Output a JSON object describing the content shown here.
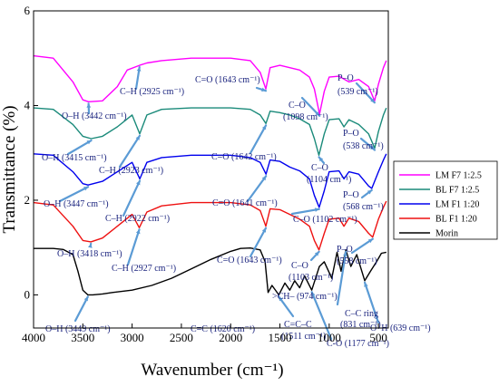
{
  "chart_data": {
    "type": "line",
    "title": "",
    "xlabel": "Wavenumber (cm⁻¹)",
    "ylabel": "Transmittance (%)",
    "xlim": [
      4000,
      400
    ],
    "ylim": [
      -0.7,
      6
    ],
    "x_ticks": [
      "4000",
      "3500",
      "3000",
      "2500",
      "2000",
      "1500",
      "1000",
      "500"
    ],
    "y_ticks": [
      "0",
      "2",
      "4",
      "6"
    ],
    "grid": false,
    "legend_position": "right",
    "legend": [
      {
        "label": "LM F7 1:2.5",
        "color": "#ff00ff"
      },
      {
        "label": "BL F7 1:2.5",
        "color": "#1a8a7a"
      },
      {
        "label": "LM F1 1:20",
        "color": "#0000ee"
      },
      {
        "label": "BL F1 1:20",
        "color": "#ee1111"
      },
      {
        "label": "Morin",
        "color": "#000000"
      }
    ],
    "series": [
      {
        "name": "LM F7 1:2.5",
        "color": "#ff00ff",
        "x": [
          4000,
          3800,
          3600,
          3500,
          3442,
          3300,
          3150,
          3050,
          2925,
          2850,
          2700,
          2400,
          2000,
          1800,
          1700,
          1643,
          1600,
          1500,
          1400,
          1300,
          1200,
          1150,
          1098,
          1050,
          1000,
          900,
          800,
          700,
          600,
          539,
          500,
          450,
          420
        ],
        "y": [
          5.05,
          5.0,
          4.5,
          4.12,
          4.08,
          4.1,
          4.4,
          4.75,
          4.85,
          4.9,
          4.95,
          5.0,
          5.0,
          4.95,
          4.7,
          4.35,
          4.8,
          4.85,
          4.8,
          4.75,
          4.6,
          4.35,
          3.82,
          4.3,
          4.6,
          4.62,
          4.5,
          4.55,
          4.4,
          4.1,
          4.45,
          4.8,
          4.95
        ]
      },
      {
        "name": "BL F7 1:2.5",
        "color": "#1a8a7a",
        "x": [
          4000,
          3800,
          3600,
          3500,
          3415,
          3300,
          3150,
          3000,
          2923,
          2850,
          2700,
          2400,
          2000,
          1800,
          1700,
          1642,
          1600,
          1500,
          1400,
          1300,
          1200,
          1150,
          1104,
          1050,
          1000,
          900,
          850,
          800,
          700,
          600,
          538,
          500,
          450,
          420
        ],
        "y": [
          3.95,
          3.92,
          3.6,
          3.35,
          3.3,
          3.35,
          3.55,
          3.8,
          3.4,
          3.8,
          3.92,
          3.95,
          3.95,
          3.92,
          3.8,
          3.62,
          3.88,
          3.85,
          3.8,
          3.72,
          3.6,
          3.3,
          2.95,
          3.4,
          3.7,
          3.72,
          3.55,
          3.7,
          3.6,
          3.4,
          3.1,
          3.45,
          3.8,
          3.95
        ]
      },
      {
        "name": "LM F1 1:20",
        "color": "#0000ee",
        "x": [
          4000,
          3800,
          3600,
          3500,
          3447,
          3300,
          3150,
          3000,
          2922,
          2850,
          2700,
          2400,
          2000,
          1800,
          1700,
          1641,
          1600,
          1500,
          1400,
          1300,
          1200,
          1150,
          1102,
          1050,
          1000,
          900,
          850,
          800,
          700,
          600,
          568,
          500,
          450,
          420
        ],
        "y": [
          2.98,
          2.95,
          2.6,
          2.35,
          2.32,
          2.4,
          2.6,
          2.8,
          2.45,
          2.8,
          2.9,
          2.95,
          2.95,
          2.9,
          2.8,
          2.55,
          2.85,
          2.82,
          2.7,
          2.62,
          2.45,
          2.1,
          1.85,
          2.2,
          2.6,
          2.62,
          2.45,
          2.6,
          2.55,
          2.3,
          2.25,
          2.6,
          2.85,
          2.98
        ]
      },
      {
        "name": "BL F1 1:20",
        "color": "#ee1111",
        "x": [
          4000,
          3800,
          3600,
          3500,
          3418,
          3300,
          3150,
          3000,
          2927,
          2850,
          2700,
          2400,
          2000,
          1800,
          1700,
          1643,
          1600,
          1500,
          1400,
          1300,
          1200,
          1150,
          1103,
          1050,
          1000,
          900,
          850,
          800,
          700,
          600,
          558,
          500,
          450,
          420
        ],
        "y": [
          1.95,
          1.9,
          1.45,
          1.15,
          1.12,
          1.2,
          1.45,
          1.7,
          1.42,
          1.75,
          1.88,
          1.95,
          1.95,
          1.9,
          1.78,
          1.45,
          1.82,
          1.8,
          1.7,
          1.6,
          1.45,
          1.15,
          0.95,
          1.3,
          1.6,
          1.62,
          1.45,
          1.62,
          1.55,
          1.3,
          1.22,
          1.6,
          1.85,
          1.98
        ]
      },
      {
        "name": "Morin",
        "color": "#000000",
        "x": [
          4000,
          3800,
          3700,
          3600,
          3550,
          3500,
          3449,
          3400,
          3300,
          3200,
          3000,
          2800,
          2600,
          2400,
          2200,
          2000,
          1900,
          1800,
          1700,
          1650,
          1620,
          1580,
          1511,
          1450,
          1400,
          1350,
          1300,
          1250,
          1177,
          1100,
          1050,
          974,
          920,
          880,
          831,
          780,
          720,
          639,
          580,
          520,
          470,
          420
        ],
        "y": [
          0.98,
          0.98,
          0.96,
          0.85,
          0.5,
          0.1,
          0.0,
          0.0,
          0.02,
          0.05,
          0.1,
          0.2,
          0.35,
          0.55,
          0.75,
          0.92,
          0.98,
          0.99,
          0.95,
          0.7,
          0.05,
          0.2,
          0.0,
          0.25,
          0.1,
          0.3,
          0.15,
          0.4,
          0.1,
          0.6,
          0.7,
          0.35,
          0.9,
          0.5,
          0.95,
          0.6,
          0.85,
          0.3,
          0.5,
          0.7,
          0.88,
          0.9
        ]
      }
    ],
    "annotations": [
      {
        "text": "O–H (3442 cm⁻¹)",
        "x": 3442,
        "y": 4.08
      },
      {
        "text": "C–H (2925 cm⁻¹)",
        "x": 2925,
        "y": 4.85
      },
      {
        "text": "C=O (1643 cm⁻¹)",
        "x": 1643,
        "y": 4.35
      },
      {
        "text": "C–O",
        "x": 1098,
        "y": 3.82
      },
      {
        "text": "(1098 cm⁻¹)",
        "x": 1098,
        "y": 3.82
      },
      {
        "text": "P–O",
        "x": 539,
        "y": 4.1
      },
      {
        "text": "(539 cm⁻¹)",
        "x": 539,
        "y": 4.1
      },
      {
        "text": "O–H (3415 cm⁻¹)",
        "x": 3415,
        "y": 3.3
      },
      {
        "text": "C–H (2923 cm⁻¹)",
        "x": 2923,
        "y": 3.4
      },
      {
        "text": "C=O (1642 cm⁻¹)",
        "x": 1642,
        "y": 3.62
      },
      {
        "text": "C–O",
        "x": 1104,
        "y": 2.95
      },
      {
        "text": "(1104 cm⁻¹)",
        "x": 1104,
        "y": 2.95
      },
      {
        "text": "P–O",
        "x": 538,
        "y": 3.1
      },
      {
        "text": "(538 cm⁻¹)",
        "x": 538,
        "y": 3.1
      },
      {
        "text": "O–H (3447 cm⁻¹)",
        "x": 3447,
        "y": 2.32
      },
      {
        "text": "C–H (2922 cm⁻¹)",
        "x": 2922,
        "y": 2.45
      },
      {
        "text": "C=O (1641 cm⁻¹)",
        "x": 1641,
        "y": 2.55
      },
      {
        "text": "C–O (1102 cm⁻¹)",
        "x": 1102,
        "y": 1.85
      },
      {
        "text": "P–O",
        "x": 568,
        "y": 2.25
      },
      {
        "text": "(568 cm⁻¹)",
        "x": 568,
        "y": 2.25
      },
      {
        "text": "O–H (3418 cm⁻¹)",
        "x": 3418,
        "y": 1.12
      },
      {
        "text": "C–H (2927 cm⁻¹)",
        "x": 2927,
        "y": 1.42
      },
      {
        "text": "C=O (1643 cm⁻¹)",
        "x": 1643,
        "y": 1.45
      },
      {
        "text": "C–O",
        "x": 1103,
        "y": 0.95
      },
      {
        "text": "(1103 cm⁻¹)",
        "x": 1103,
        "y": 0.95
      },
      {
        "text": "P–O",
        "x": 558,
        "y": 1.22
      },
      {
        "text": "(558 cm⁻¹)",
        "x": 558,
        "y": 1.22
      },
      {
        "text": "O–H (3449 cm⁻¹)",
        "x": 3449,
        "y": 0.0
      },
      {
        "text": "C=C (1620 cm⁻¹)",
        "x": 1620,
        "y": 0.05
      },
      {
        "text": ">CH– (974 cm⁻¹)",
        "x": 974,
        "y": 0.35
      },
      {
        "text": "C=C–C",
        "x": 1511,
        "y": 0.0
      },
      {
        "text": "(1511 cm⁻¹)",
        "x": 1511,
        "y": 0.0
      },
      {
        "text": "C–C ring",
        "x": 831,
        "y": 0.95
      },
      {
        "text": "(831 cm⁻¹)",
        "x": 831,
        "y": 0.95
      },
      {
        "text": "C-O (1177 cm⁻¹)",
        "x": 1177,
        "y": 0.1
      },
      {
        "text": "O–H (639 cm⁻¹)",
        "x": 639,
        "y": 0.3
      }
    ]
  }
}
